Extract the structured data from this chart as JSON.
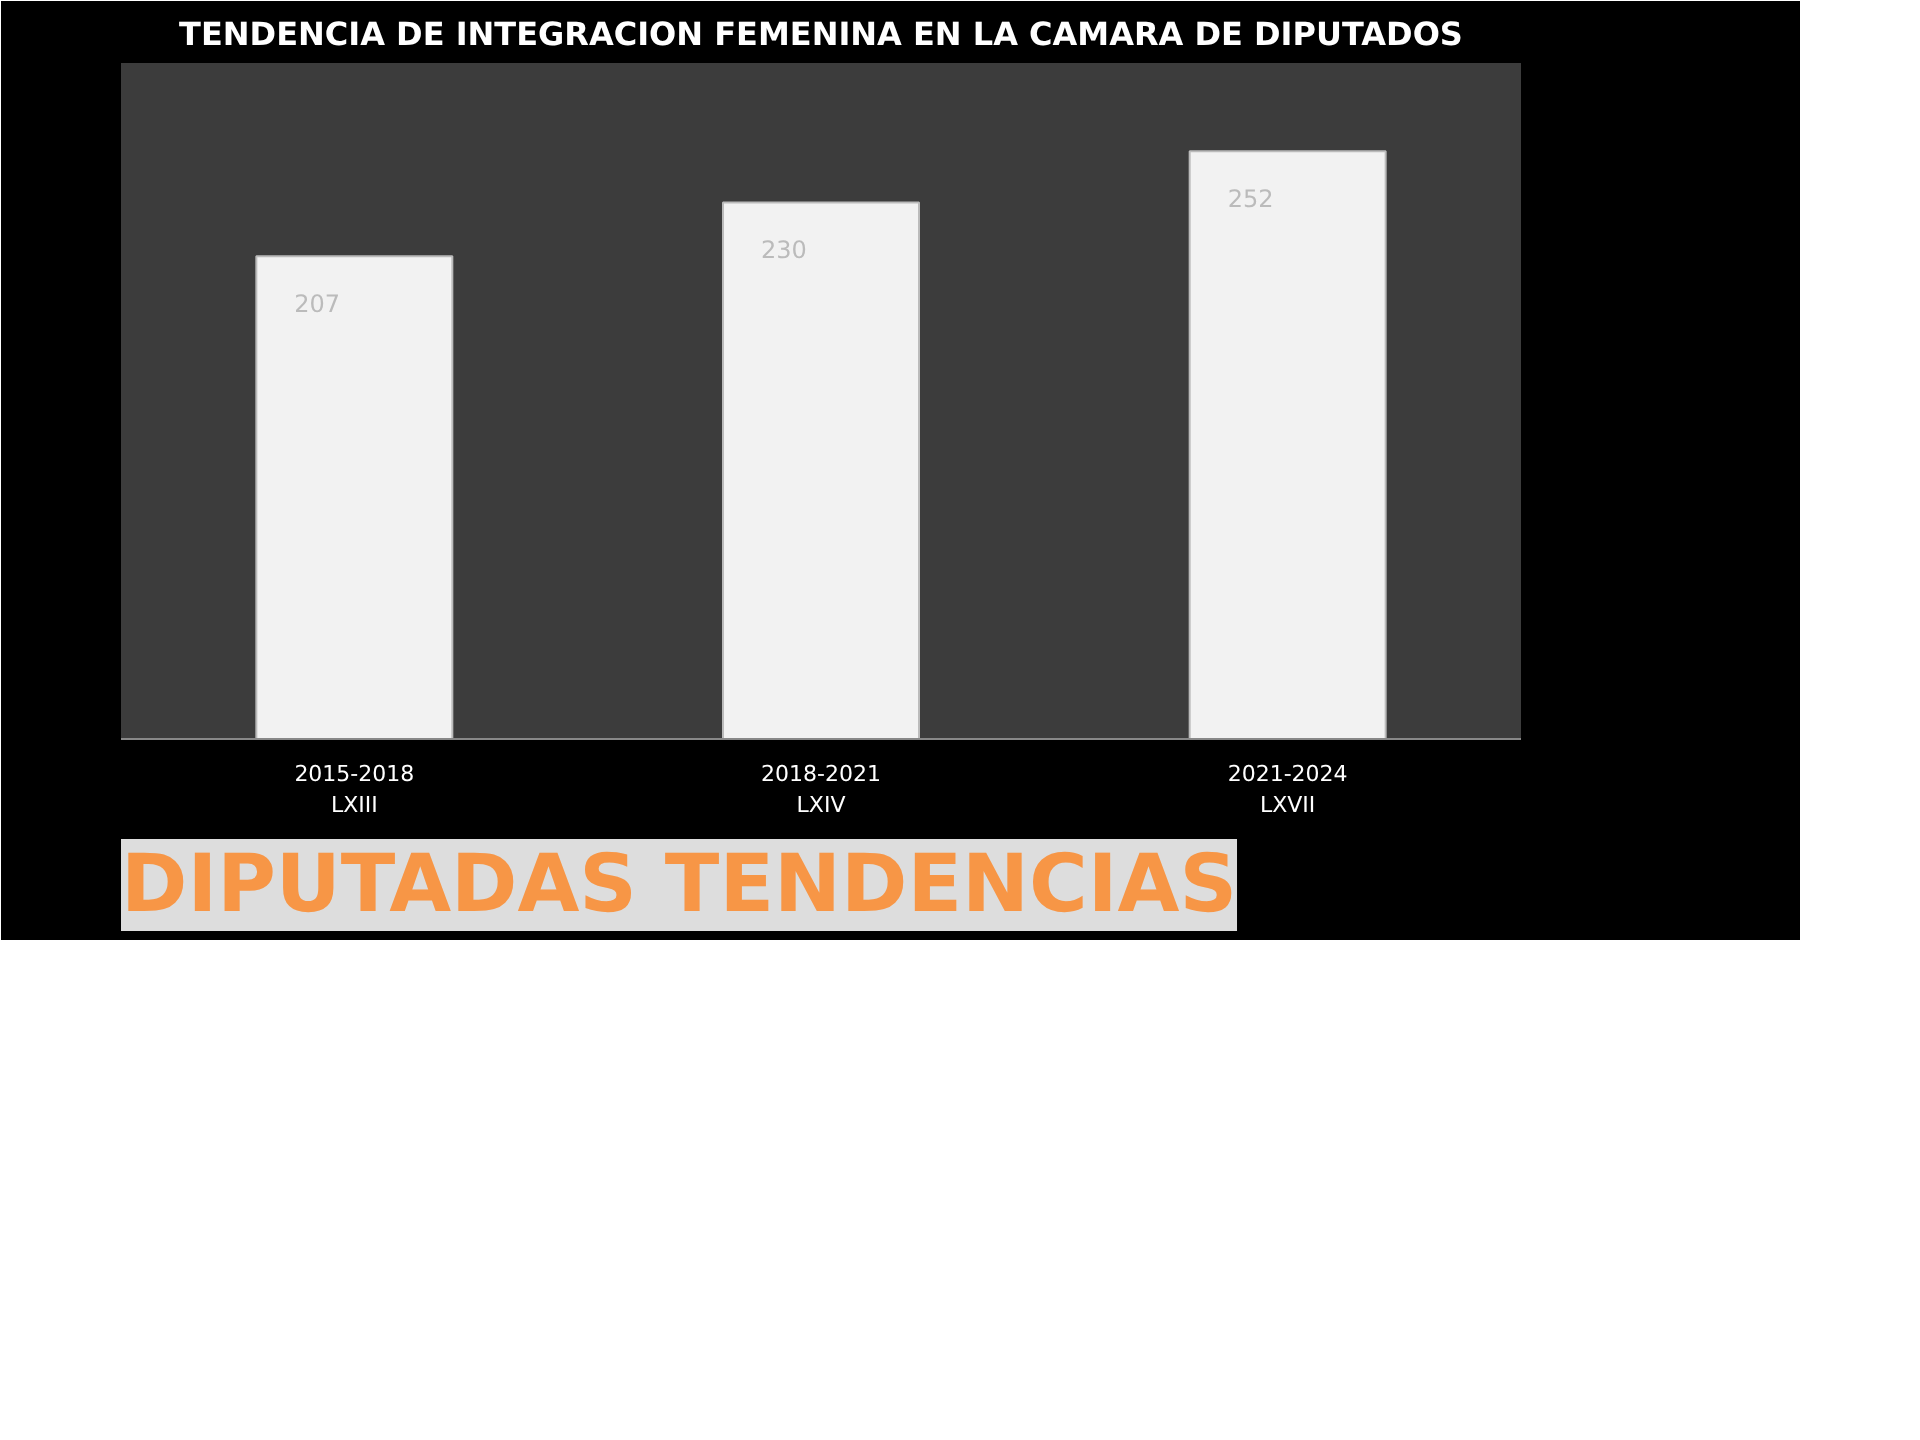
{
  "chart_data": {
    "type": "bar",
    "title": "TENDENCIA DE INTEGRACION FEMENINA EN LA CAMARA DE DIPUTADOS",
    "categories": [
      "2015-2018\nLXIII",
      "2018-2021\nLXIV",
      "2021-2024\nLXVII"
    ],
    "values": [
      207,
      230,
      252
    ],
    "color": "#f2f2f2",
    "data_labels": true,
    "grid": false,
    "annotations": [
      "DIPUTADAS TENDENCIAS"
    ]
  }
}
